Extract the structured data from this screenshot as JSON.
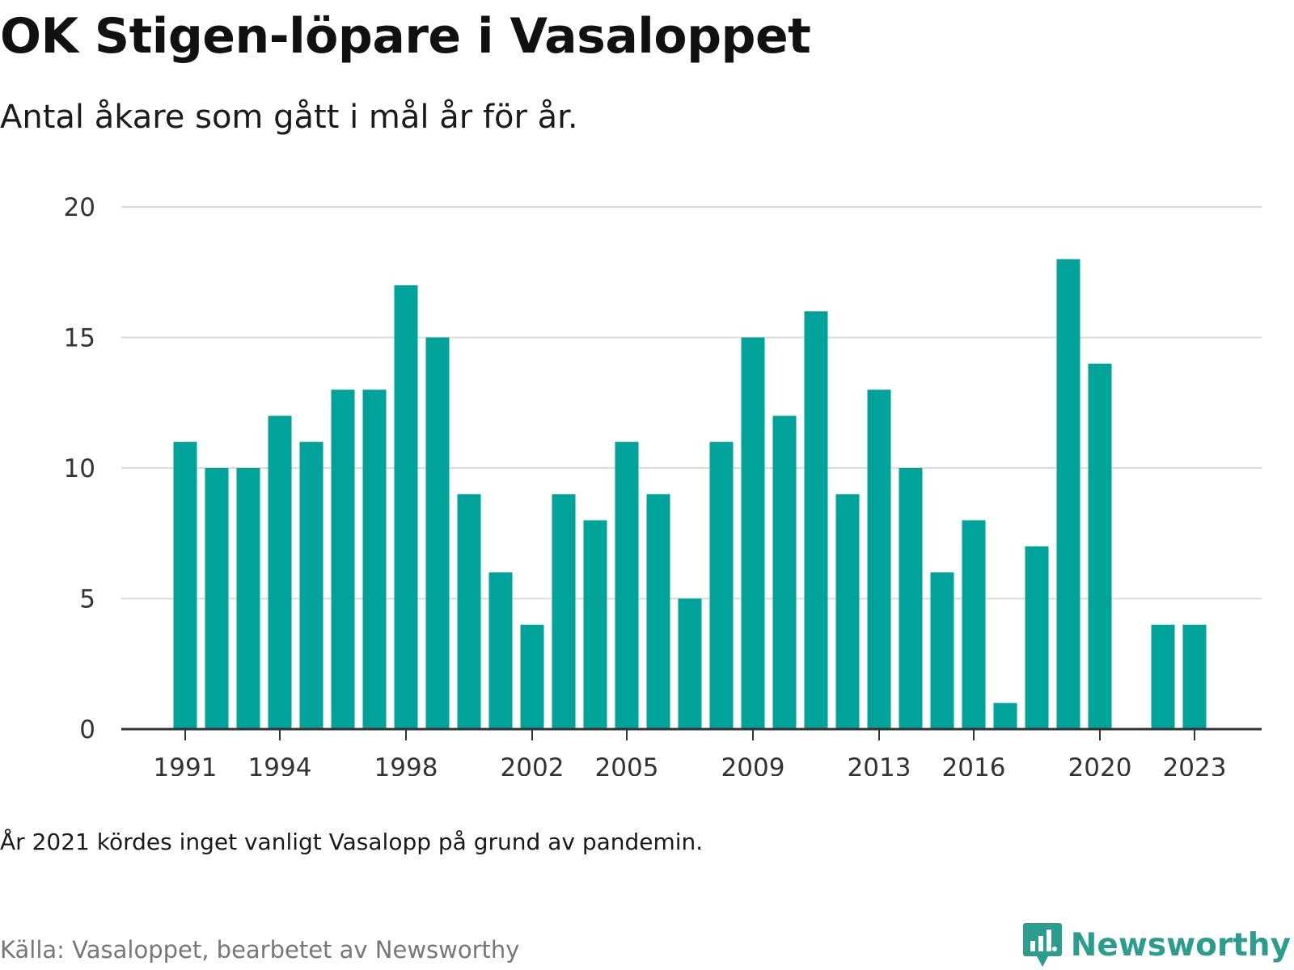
{
  "title": "OK Stigen-löpare i Vasaloppet",
  "subtitle": "Antal åkare som gått i mål år för år.",
  "note": "År 2021 kördes inget vanligt Vasalopp på grund av pandemin.",
  "source": "Källa: Vasaloppet, bearbetet av Newsworthy",
  "logo": {
    "text": "Newsworthy",
    "icon": "newsworthy-logo-icon"
  },
  "colors": {
    "bar": "#00a39a",
    "grid": "#dcdcdc",
    "axis": "#333333",
    "logo": "#2a9d8f"
  },
  "chart_data": {
    "type": "bar",
    "x": [
      1991,
      1992,
      1993,
      1994,
      1995,
      1996,
      1997,
      1998,
      1999,
      2000,
      2001,
      2002,
      2003,
      2004,
      2005,
      2006,
      2007,
      2008,
      2009,
      2010,
      2011,
      2012,
      2013,
      2014,
      2015,
      2016,
      2017,
      2018,
      2019,
      2020,
      2021,
      2022,
      2023
    ],
    "values": [
      11,
      10,
      10,
      12,
      11,
      13,
      13,
      17,
      15,
      9,
      6,
      4,
      9,
      8,
      11,
      9,
      5,
      11,
      15,
      12,
      16,
      9,
      13,
      10,
      6,
      8,
      1,
      7,
      18,
      14,
      null,
      4,
      4
    ],
    "x_ticks": [
      1991,
      1994,
      1998,
      2002,
      2005,
      2009,
      2013,
      2016,
      2020,
      2023
    ],
    "y_ticks": [
      0,
      5,
      10,
      15,
      20
    ],
    "ylim": [
      0,
      20
    ],
    "grid": true,
    "title": "OK Stigen-löpare i Vasaloppet",
    "xlabel": "",
    "ylabel": ""
  }
}
